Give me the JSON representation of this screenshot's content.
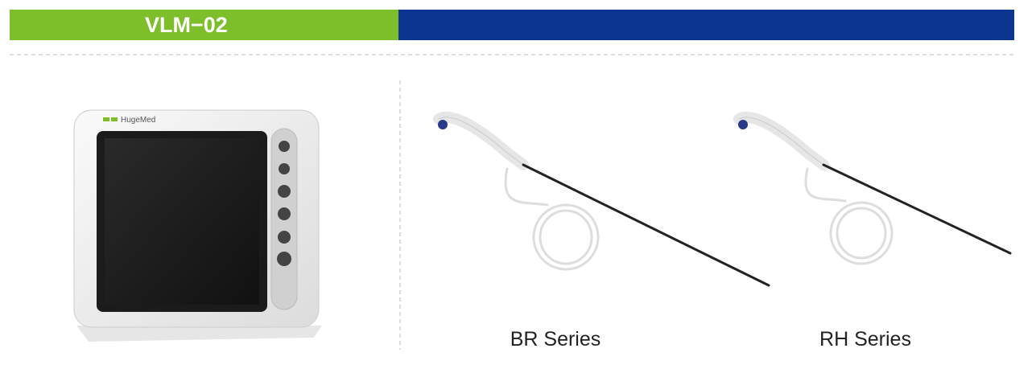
{
  "header": {
    "title": "VLM−02"
  },
  "products": [
    {
      "brand": "HugeMed"
    },
    {
      "label": "BR Series"
    },
    {
      "label": "RH Series"
    }
  ]
}
